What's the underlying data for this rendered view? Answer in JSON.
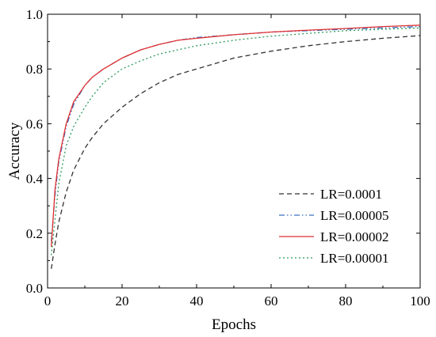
{
  "chart_data": {
    "type": "line",
    "xlabel": "Epochs",
    "ylabel": "Accuracy",
    "xlim": [
      0,
      100
    ],
    "ylim": [
      0.0,
      1.0
    ],
    "x_ticks": [
      "0",
      "20",
      "40",
      "60",
      "80",
      "100"
    ],
    "y_ticks": [
      "0.0",
      "0.2",
      "0.4",
      "0.6",
      "0.8",
      "1.0"
    ],
    "grid": false,
    "legend_position": "bottom-right",
    "x": [
      1,
      2,
      3,
      5,
      7,
      10,
      12,
      15,
      20,
      25,
      30,
      35,
      40,
      50,
      60,
      70,
      80,
      90,
      100
    ],
    "series": [
      {
        "name": "LR=0.0001",
        "color": "#333333",
        "dash": "dashed",
        "values": [
          0.07,
          0.16,
          0.24,
          0.35,
          0.43,
          0.51,
          0.55,
          0.6,
          0.66,
          0.71,
          0.75,
          0.78,
          0.8,
          0.84,
          0.865,
          0.885,
          0.9,
          0.912,
          0.922
        ]
      },
      {
        "name": "LR=0.00005",
        "color": "#3a6fc4",
        "dash": "dashdotdot",
        "values": [
          0.17,
          0.34,
          0.46,
          0.59,
          0.67,
          0.74,
          0.77,
          0.8,
          0.84,
          0.87,
          0.89,
          0.905,
          0.915,
          0.925,
          0.935,
          0.94,
          0.945,
          0.95,
          0.955
        ]
      },
      {
        "name": "LR=0.00002",
        "color": "#e03030",
        "dash": "solid",
        "values": [
          0.15,
          0.36,
          0.47,
          0.6,
          0.68,
          0.74,
          0.77,
          0.8,
          0.84,
          0.87,
          0.89,
          0.905,
          0.912,
          0.925,
          0.935,
          0.942,
          0.948,
          0.955,
          0.96
        ]
      },
      {
        "name": "LR=0.00001",
        "color": "#2a9a5a",
        "dash": "dotted",
        "values": [
          0.12,
          0.25,
          0.38,
          0.52,
          0.59,
          0.66,
          0.7,
          0.75,
          0.8,
          0.83,
          0.855,
          0.87,
          0.885,
          0.905,
          0.92,
          0.93,
          0.94,
          0.945,
          0.95
        ]
      }
    ]
  }
}
